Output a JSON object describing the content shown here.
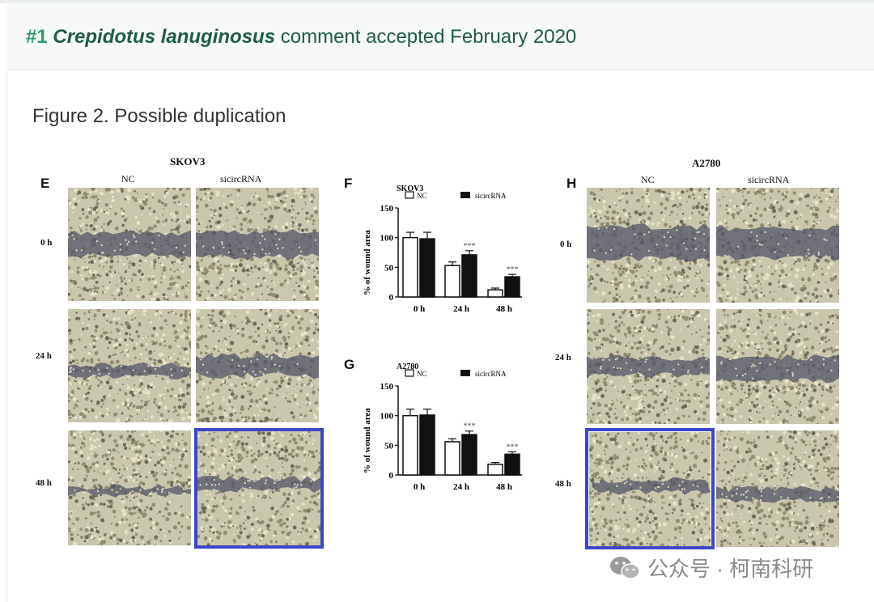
{
  "header": {
    "number": "#1",
    "species": "Crepidotus lanuginosus",
    "text": " comment accepted February 2020"
  },
  "figure_caption": "Figure 2. Possible duplication",
  "panels": {
    "E": {
      "letter": "E",
      "title": "SKOV3",
      "col1": "NC",
      "col2": "sicircRNA",
      "rows": [
        "0 h",
        "24 h",
        "48 h"
      ]
    },
    "F": {
      "letter": "F"
    },
    "G": {
      "letter": "G"
    },
    "H": {
      "letter": "H",
      "title": "A2780",
      "col1": "NC",
      "col2": "sicircRNA",
      "rows": [
        "0 h",
        "24 h",
        "48 h"
      ]
    }
  },
  "chart_data": [
    {
      "type": "bar",
      "title": "SKOV3",
      "ylabel": "% of wound area",
      "categories": [
        "0 h",
        "24 h",
        "48 h"
      ],
      "series": [
        {
          "name": "NC",
          "values": [
            100,
            53,
            12
          ],
          "errors": [
            9,
            6,
            3
          ]
        },
        {
          "name": "sicircRNA",
          "values": [
            98,
            71,
            34
          ],
          "errors": [
            11,
            7,
            4
          ]
        }
      ],
      "yticks": [
        "0",
        "50",
        "100",
        "150"
      ],
      "ylim": [
        0,
        150
      ],
      "annotations": [
        "",
        "***",
        "***"
      ]
    },
    {
      "type": "bar",
      "title": "A2780",
      "ylabel": "% of wound area",
      "categories": [
        "0 h",
        "24 h",
        "48 h"
      ],
      "series": [
        {
          "name": "NC",
          "values": [
            100,
            56,
            18
          ],
          "errors": [
            11,
            5,
            3
          ]
        },
        {
          "name": "sicircRNA",
          "values": [
            101,
            68,
            35
          ],
          "errors": [
            10,
            6,
            4
          ]
        }
      ],
      "yticks": [
        "0",
        "50",
        "100",
        "150"
      ],
      "ylim": [
        0,
        150
      ],
      "annotations": [
        "",
        "***",
        "***"
      ]
    }
  ],
  "watermark": {
    "text": "公众号 · 柯南科研",
    "icon": "wechat-icon"
  },
  "colors": {
    "highlight": "#3d46c9",
    "header_green": "#1f5c48",
    "number_green": "#2f9a6c"
  }
}
